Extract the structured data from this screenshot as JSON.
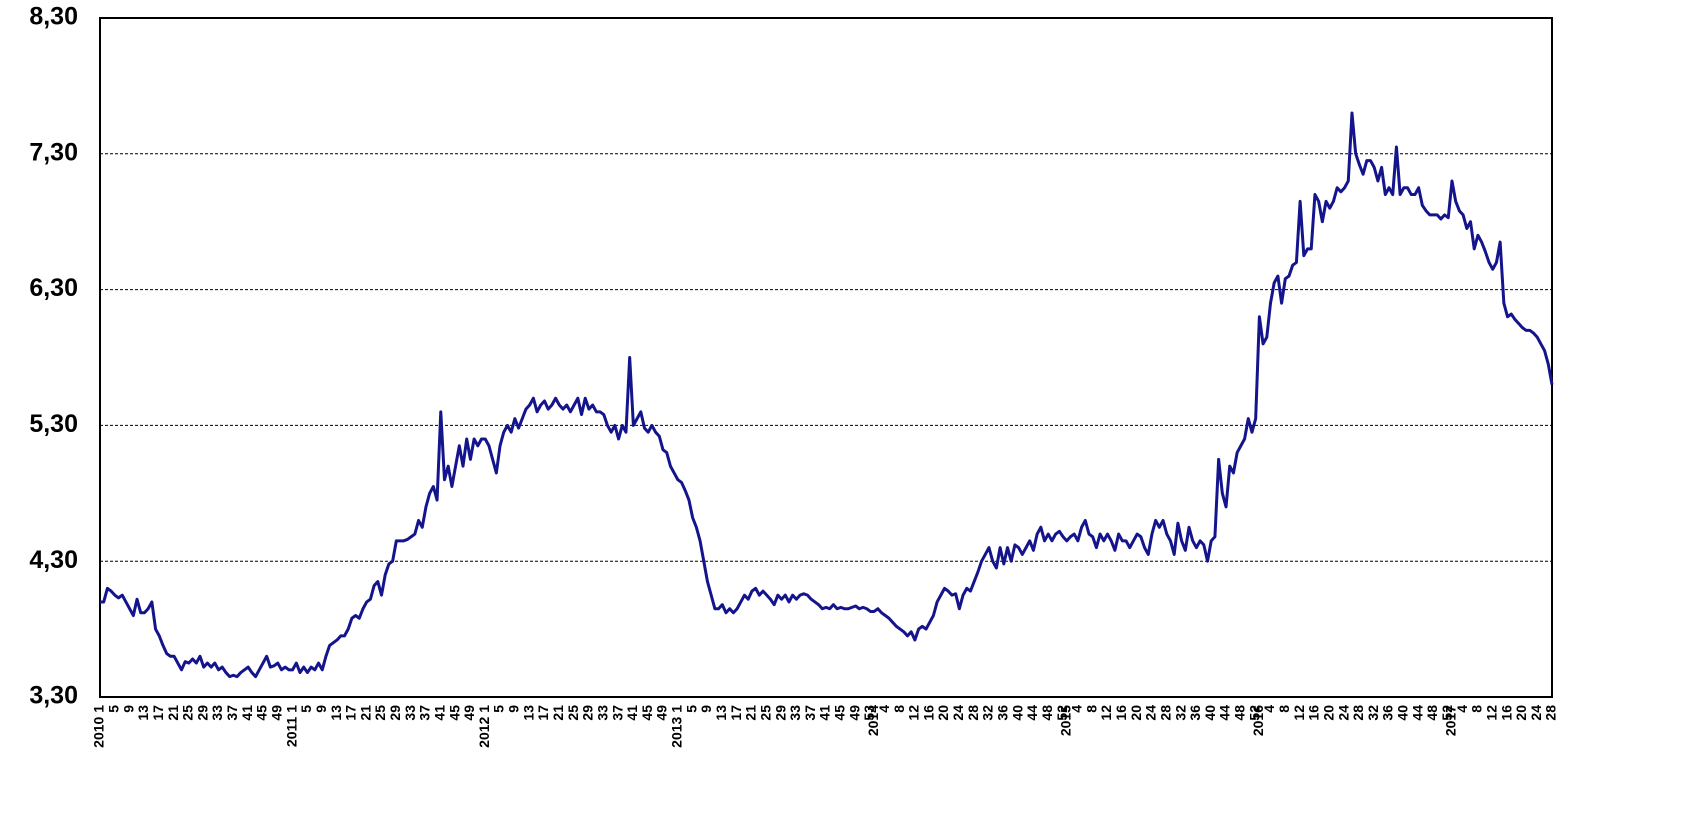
{
  "chart_data": {
    "type": "line",
    "ylim": [
      3.3,
      8.3
    ],
    "yticks": [
      {
        "value": 3.3,
        "label": "3,30"
      },
      {
        "value": 4.3,
        "label": "4,30"
      },
      {
        "value": 5.3,
        "label": "5,30"
      },
      {
        "value": 6.3,
        "label": "6,30"
      },
      {
        "value": 7.3,
        "label": "7,30"
      },
      {
        "value": 8.3,
        "label": "8,30"
      }
    ],
    "grid": true,
    "categories": [
      "2010 1",
      null,
      null,
      null,
      "5",
      null,
      null,
      null,
      "9",
      null,
      null,
      null,
      "13",
      null,
      null,
      null,
      "17",
      null,
      null,
      null,
      "21",
      null,
      null,
      null,
      "25",
      null,
      null,
      null,
      "29",
      null,
      null,
      null,
      "33",
      null,
      null,
      null,
      "37",
      null,
      null,
      null,
      "41",
      null,
      null,
      null,
      "45",
      null,
      null,
      null,
      "49",
      null,
      null,
      null,
      "2011 1",
      null,
      null,
      null,
      "5",
      null,
      null,
      null,
      "9",
      null,
      null,
      null,
      "13",
      null,
      null,
      null,
      "17",
      null,
      null,
      null,
      "21",
      null,
      null,
      null,
      "25",
      null,
      null,
      null,
      "29",
      null,
      null,
      null,
      "33",
      null,
      null,
      null,
      "37",
      null,
      null,
      null,
      "41",
      null,
      null,
      null,
      "45",
      null,
      null,
      null,
      "49",
      null,
      null,
      null,
      "2012 1",
      null,
      null,
      null,
      "5",
      null,
      null,
      null,
      "9",
      null,
      null,
      null,
      "13",
      null,
      null,
      null,
      "17",
      null,
      null,
      null,
      "21",
      null,
      null,
      null,
      "25",
      null,
      null,
      null,
      "29",
      null,
      null,
      null,
      "33",
      null,
      null,
      null,
      "37",
      null,
      null,
      null,
      "41",
      null,
      null,
      null,
      "45",
      null,
      null,
      null,
      "49",
      null,
      null,
      null,
      "2013 1",
      null,
      null,
      null,
      "5",
      null,
      null,
      null,
      "9",
      null,
      null,
      null,
      "13",
      null,
      null,
      null,
      "17",
      null,
      null,
      null,
      "21",
      null,
      null,
      null,
      "25",
      null,
      null,
      null,
      "29",
      null,
      null,
      null,
      "33",
      null,
      null,
      null,
      "37",
      null,
      null,
      null,
      "41",
      null,
      null,
      null,
      "45",
      null,
      null,
      null,
      "49",
      null,
      null,
      null,
      "53",
      "2014",
      null,
      null,
      "4",
      null,
      null,
      null,
      "8",
      null,
      null,
      null,
      "12",
      null,
      null,
      null,
      "16",
      null,
      null,
      null,
      "20",
      null,
      null,
      null,
      "24",
      null,
      null,
      null,
      "28",
      null,
      null,
      null,
      "32",
      null,
      null,
      null,
      "36",
      null,
      null,
      null,
      "40",
      null,
      null,
      null,
      "44",
      null,
      null,
      null,
      "48",
      null,
      null,
      null,
      "52",
      "2015",
      null,
      null,
      "4",
      null,
      null,
      null,
      "8",
      null,
      null,
      null,
      "12",
      null,
      null,
      null,
      "16",
      null,
      null,
      null,
      "20",
      null,
      null,
      null,
      "24",
      null,
      null,
      null,
      "28",
      null,
      null,
      null,
      "32",
      null,
      null,
      null,
      "36",
      null,
      null,
      null,
      "40",
      null,
      null,
      null,
      "44",
      null,
      null,
      null,
      "48",
      null,
      null,
      null,
      "52",
      "2016",
      null,
      null,
      "4",
      null,
      null,
      null,
      "8",
      null,
      null,
      null,
      "12",
      null,
      null,
      null,
      "16",
      null,
      null,
      null,
      "20",
      null,
      null,
      null,
      "24",
      null,
      null,
      null,
      "28",
      null,
      null,
      null,
      "32",
      null,
      null,
      null,
      "36",
      null,
      null,
      null,
      "40",
      null,
      null,
      null,
      "44",
      null,
      null,
      null,
      "48",
      null,
      null,
      null,
      "52",
      "2017",
      null,
      null,
      "4",
      null,
      null,
      null,
      "8",
      null,
      null,
      null,
      "12",
      null,
      null,
      null,
      "16",
      null,
      null,
      null,
      "20",
      null,
      null,
      null,
      "24",
      null,
      null,
      null,
      "28"
    ],
    "series": [
      {
        "color": "#14148c",
        "values": [
          4.0,
          4.0,
          4.1,
          4.08,
          4.05,
          4.03,
          4.05,
          4.0,
          3.95,
          3.9,
          4.02,
          3.92,
          3.92,
          3.95,
          4.0,
          3.8,
          3.75,
          3.68,
          3.62,
          3.6,
          3.6,
          3.55,
          3.5,
          3.56,
          3.55,
          3.58,
          3.55,
          3.6,
          3.52,
          3.55,
          3.52,
          3.55,
          3.5,
          3.52,
          3.48,
          3.45,
          3.46,
          3.45,
          3.48,
          3.5,
          3.52,
          3.48,
          3.45,
          3.5,
          3.55,
          3.6,
          3.52,
          3.53,
          3.55,
          3.5,
          3.52,
          3.5,
          3.5,
          3.55,
          3.48,
          3.52,
          3.48,
          3.52,
          3.5,
          3.55,
          3.5,
          3.6,
          3.68,
          3.7,
          3.72,
          3.75,
          3.75,
          3.8,
          3.88,
          3.9,
          3.88,
          3.95,
          4.0,
          4.02,
          4.12,
          4.15,
          4.05,
          4.2,
          4.28,
          4.3,
          4.45,
          4.45,
          4.45,
          4.46,
          4.48,
          4.5,
          4.6,
          4.55,
          4.7,
          4.8,
          4.85,
          4.75,
          5.4,
          4.9,
          5.0,
          4.85,
          5.0,
          5.15,
          5.0,
          5.2,
          5.05,
          5.2,
          5.15,
          5.2,
          5.2,
          5.15,
          5.05,
          4.95,
          5.15,
          5.25,
          5.3,
          5.25,
          5.35,
          5.28,
          5.35,
          5.42,
          5.45,
          5.5,
          5.4,
          5.45,
          5.48,
          5.42,
          5.45,
          5.5,
          5.45,
          5.42,
          5.45,
          5.4,
          5.45,
          5.5,
          5.38,
          5.5,
          5.42,
          5.45,
          5.4,
          5.4,
          5.38,
          5.3,
          5.25,
          5.3,
          5.2,
          5.3,
          5.25,
          5.8,
          5.3,
          5.35,
          5.4,
          5.28,
          5.25,
          5.3,
          5.25,
          5.22,
          5.12,
          5.1,
          5.0,
          4.95,
          4.9,
          4.88,
          4.82,
          4.75,
          4.62,
          4.55,
          4.45,
          4.3,
          4.15,
          4.05,
          3.95,
          3.95,
          3.98,
          3.92,
          3.95,
          3.92,
          3.95,
          4.0,
          4.05,
          4.02,
          4.08,
          4.1,
          4.05,
          4.08,
          4.05,
          4.02,
          3.98,
          4.05,
          4.02,
          4.05,
          4.0,
          4.05,
          4.02,
          4.05,
          4.06,
          4.05,
          4.02,
          4.0,
          3.98,
          3.95,
          3.96,
          3.95,
          3.98,
          3.95,
          3.96,
          3.95,
          3.95,
          3.96,
          3.97,
          3.95,
          3.96,
          3.95,
          3.93,
          3.93,
          3.95,
          3.92,
          3.9,
          3.88,
          3.85,
          3.82,
          3.8,
          3.78,
          3.75,
          3.78,
          3.72,
          3.8,
          3.82,
          3.8,
          3.85,
          3.9,
          4.0,
          4.05,
          4.1,
          4.08,
          4.05,
          4.06,
          3.95,
          4.05,
          4.1,
          4.08,
          4.15,
          4.22,
          4.3,
          4.35,
          4.4,
          4.3,
          4.25,
          4.4,
          4.28,
          4.4,
          4.3,
          4.42,
          4.4,
          4.35,
          4.4,
          4.45,
          4.38,
          4.5,
          4.55,
          4.45,
          4.5,
          4.45,
          4.5,
          4.52,
          4.48,
          4.45,
          4.48,
          4.5,
          4.45,
          4.55,
          4.6,
          4.5,
          4.48,
          4.4,
          4.5,
          4.45,
          4.5,
          4.45,
          4.38,
          4.5,
          4.45,
          4.45,
          4.4,
          4.45,
          4.5,
          4.48,
          4.4,
          4.35,
          4.5,
          4.6,
          4.55,
          4.6,
          4.5,
          4.45,
          4.35,
          4.58,
          4.45,
          4.38,
          4.55,
          4.45,
          4.4,
          4.45,
          4.42,
          4.3,
          4.45,
          4.48,
          5.05,
          4.8,
          4.7,
          5.0,
          4.95,
          5.1,
          5.15,
          5.2,
          5.35,
          5.25,
          5.35,
          6.1,
          5.9,
          5.95,
          6.2,
          6.35,
          6.4,
          6.2,
          6.38,
          6.4,
          6.48,
          6.5,
          6.95,
          6.55,
          6.6,
          6.6,
          7.0,
          6.95,
          6.8,
          6.95,
          6.9,
          6.95,
          7.05,
          7.02,
          7.05,
          7.1,
          7.6,
          7.3,
          7.22,
          7.15,
          7.25,
          7.25,
          7.2,
          7.1,
          7.2,
          7.0,
          7.05,
          7.0,
          7.35,
          7.0,
          7.05,
          7.05,
          7.0,
          7.0,
          7.05,
          6.92,
          6.88,
          6.85,
          6.85,
          6.85,
          6.82,
          6.85,
          6.83,
          7.1,
          6.95,
          6.88,
          6.85,
          6.75,
          6.8,
          6.6,
          6.7,
          6.65,
          6.58,
          6.5,
          6.45,
          6.5,
          6.65,
          6.2,
          6.1,
          6.12,
          6.08,
          6.05,
          6.02,
          6.0,
          6.0,
          5.98,
          5.95,
          5.9,
          5.85,
          5.75,
          5.6
        ]
      }
    ]
  }
}
